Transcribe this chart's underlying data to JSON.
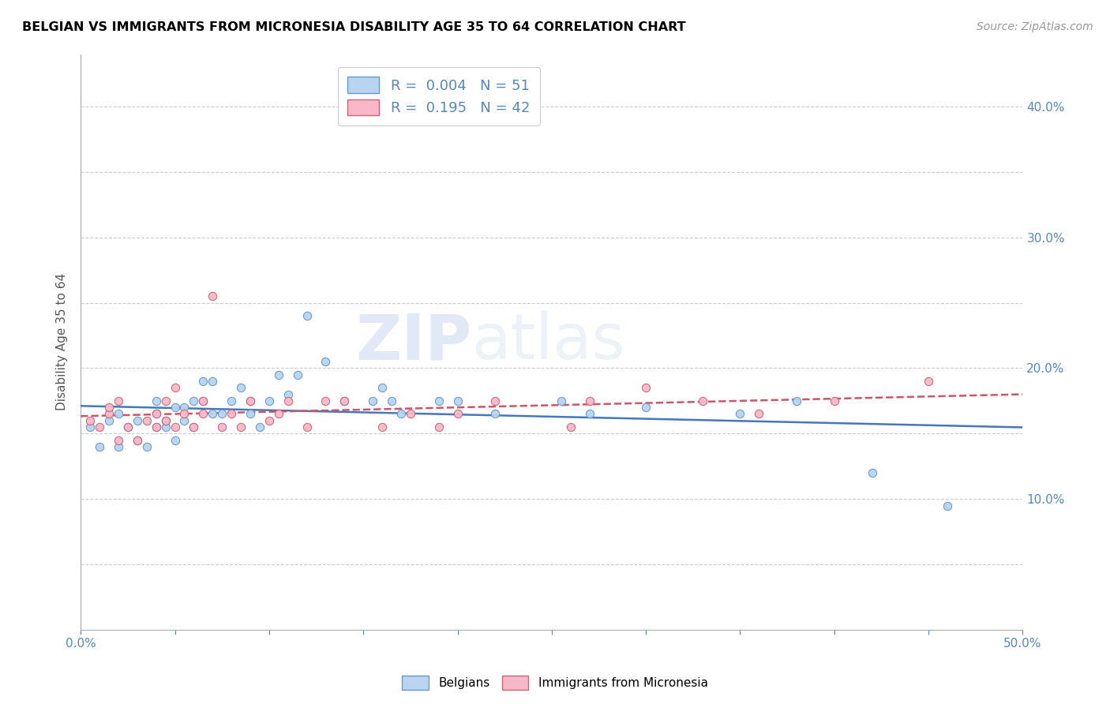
{
  "title": "BELGIAN VS IMMIGRANTS FROM MICRONESIA DISABILITY AGE 35 TO 64 CORRELATION CHART",
  "source": "Source: ZipAtlas.com",
  "ylabel": "Disability Age 35 to 64",
  "xlim": [
    0.0,
    0.5
  ],
  "ylim": [
    0.0,
    0.44
  ],
  "xtick_vals": [
    0.0,
    0.05,
    0.1,
    0.15,
    0.2,
    0.25,
    0.3,
    0.35,
    0.4,
    0.45,
    0.5
  ],
  "xtick_labels": [
    "0.0%",
    "",
    "",
    "",
    "",
    "",
    "",
    "",
    "",
    "",
    "50.0%"
  ],
  "ytick_vals": [
    0.0,
    0.05,
    0.1,
    0.15,
    0.2,
    0.25,
    0.3,
    0.35,
    0.4
  ],
  "ytick_labels": [
    "",
    "",
    "10.0%",
    "",
    "20.0%",
    "",
    "30.0%",
    "",
    "40.0%"
  ],
  "legend_text1": "R =  0.004   N = 51",
  "legend_text2": "R =  0.195   N = 42",
  "color_belgian_fill": "#b8d4f0",
  "color_belgian_edge": "#6699cc",
  "color_micronesia_fill": "#f8b8c8",
  "color_micronesia_edge": "#cc6677",
  "color_line_belgian": "#4477bb",
  "color_line_micronesia": "#cc5566",
  "watermark_zip": "ZIP",
  "watermark_atlas": "atlas",
  "belgians_x": [
    0.005,
    0.01,
    0.015,
    0.02,
    0.02,
    0.025,
    0.03,
    0.03,
    0.035,
    0.04,
    0.04,
    0.04,
    0.045,
    0.045,
    0.05,
    0.05,
    0.055,
    0.055,
    0.06,
    0.06,
    0.065,
    0.065,
    0.07,
    0.07,
    0.075,
    0.08,
    0.085,
    0.09,
    0.09,
    0.095,
    0.1,
    0.105,
    0.11,
    0.115,
    0.12,
    0.13,
    0.14,
    0.155,
    0.16,
    0.165,
    0.17,
    0.19,
    0.2,
    0.22,
    0.255,
    0.27,
    0.3,
    0.35,
    0.38,
    0.42,
    0.46
  ],
  "belgians_y": [
    0.155,
    0.14,
    0.16,
    0.14,
    0.165,
    0.155,
    0.145,
    0.16,
    0.14,
    0.155,
    0.165,
    0.175,
    0.155,
    0.16,
    0.145,
    0.17,
    0.16,
    0.17,
    0.155,
    0.175,
    0.175,
    0.19,
    0.165,
    0.19,
    0.165,
    0.175,
    0.185,
    0.165,
    0.175,
    0.155,
    0.175,
    0.195,
    0.18,
    0.195,
    0.24,
    0.205,
    0.175,
    0.175,
    0.185,
    0.175,
    0.165,
    0.175,
    0.175,
    0.165,
    0.175,
    0.165,
    0.17,
    0.165,
    0.175,
    0.12,
    0.095
  ],
  "micronesia_x": [
    0.005,
    0.01,
    0.015,
    0.015,
    0.02,
    0.02,
    0.025,
    0.03,
    0.035,
    0.04,
    0.04,
    0.045,
    0.045,
    0.05,
    0.05,
    0.055,
    0.06,
    0.065,
    0.065,
    0.07,
    0.075,
    0.08,
    0.085,
    0.09,
    0.1,
    0.105,
    0.11,
    0.12,
    0.13,
    0.14,
    0.16,
    0.175,
    0.19,
    0.2,
    0.22,
    0.26,
    0.27,
    0.3,
    0.33,
    0.36,
    0.4,
    0.45
  ],
  "micronesia_y": [
    0.16,
    0.155,
    0.165,
    0.17,
    0.145,
    0.175,
    0.155,
    0.145,
    0.16,
    0.155,
    0.165,
    0.16,
    0.175,
    0.155,
    0.185,
    0.165,
    0.155,
    0.165,
    0.175,
    0.255,
    0.155,
    0.165,
    0.155,
    0.175,
    0.16,
    0.165,
    0.175,
    0.155,
    0.175,
    0.175,
    0.155,
    0.165,
    0.155,
    0.165,
    0.175,
    0.155,
    0.175,
    0.185,
    0.175,
    0.165,
    0.175,
    0.19
  ]
}
